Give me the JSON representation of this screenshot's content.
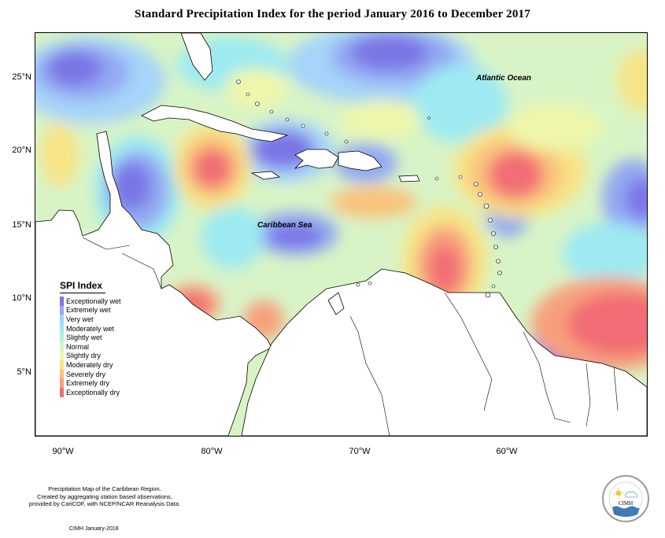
{
  "title": "Standard Precipitation Index for the period January 2016 to December 2017",
  "map": {
    "ocean_labels": [
      "Atlantic Ocean",
      "Caribbean Sea"
    ],
    "lat_ticks": [
      "25°N",
      "20°N",
      "15°N",
      "10°N",
      "5°N"
    ],
    "lon_ticks": [
      "90°W",
      "80°W",
      "70°W",
      "60°W"
    ]
  },
  "legend": {
    "title": "SPI Index",
    "items": [
      {
        "label": "Exceptionally wet",
        "color": "#7a74e6"
      },
      {
        "label": "Extremely wet",
        "color": "#93a9f2"
      },
      {
        "label": "Very wet",
        "color": "#a6d4fa"
      },
      {
        "label": "Moderately wet",
        "color": "#9deaf2"
      },
      {
        "label": "Slightly wet",
        "color": "#b5f3d4"
      },
      {
        "label": "Normal",
        "color": "#d8f4c6"
      },
      {
        "label": "Slightly dry",
        "color": "#eef7aa"
      },
      {
        "label": "Moderately dry",
        "color": "#f8e486"
      },
      {
        "label": "Severely dry",
        "color": "#f9c27c"
      },
      {
        "label": "Extremely dry",
        "color": "#f7a07c"
      },
      {
        "label": "Exceptionally dry",
        "color": "#f26d74"
      }
    ]
  },
  "credits": {
    "line1": "Precipitation Map of the Caribbean Region.",
    "line2": "Created by aggregating station based observations,",
    "line3": "provided by CariCOF, with NCEP/NCAR Reanalysis Data.",
    "date": "CIMH January-2018"
  },
  "logo": {
    "text": "CIMH"
  }
}
